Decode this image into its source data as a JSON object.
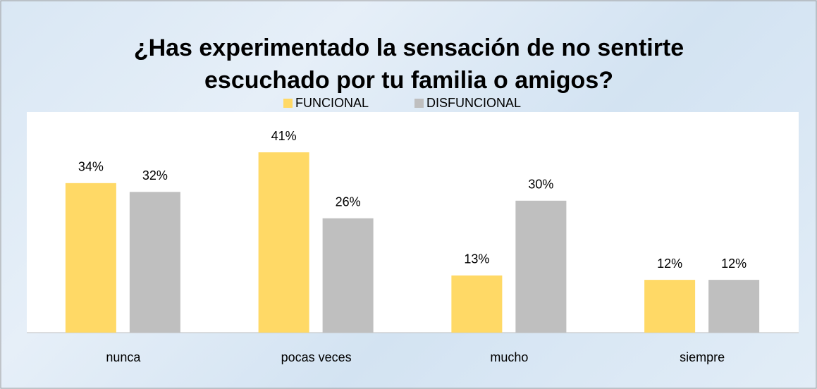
{
  "chart_data": {
    "type": "bar",
    "title": "¿Has experimentado la sensación de no sentirte escuchado por tu familia o amigos?",
    "categories": [
      "nunca",
      "pocas veces",
      "mucho",
      "siempre"
    ],
    "series": [
      {
        "name": "FUNCIONAL",
        "color": "#ffd966",
        "values": [
          34,
          41,
          13,
          12
        ],
        "value_labels": [
          "34%",
          "41%",
          "13%",
          "12%"
        ]
      },
      {
        "name": "DISFUNCIONAL",
        "color": "#bfbfbf",
        "values": [
          32,
          26,
          30,
          12
        ],
        "value_labels": [
          "32%",
          "26%",
          "30%",
          "12%"
        ]
      }
    ],
    "legend": "top"
  }
}
